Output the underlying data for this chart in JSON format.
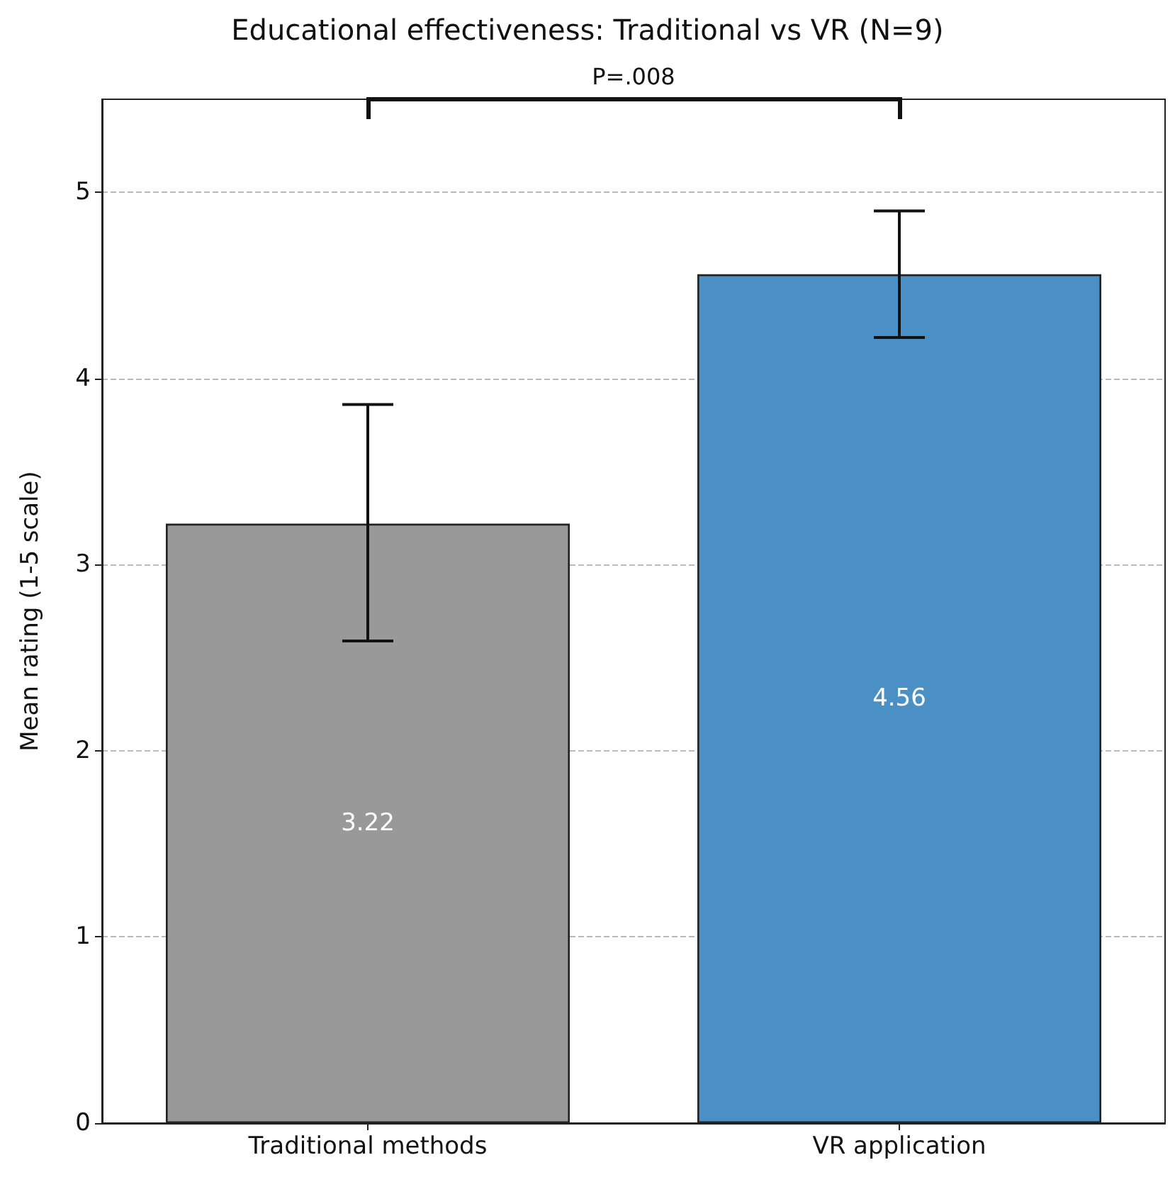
{
  "chart_data": {
    "type": "bar",
    "title": "Educational effectiveness: Traditional vs VR (N=9)",
    "ylabel": "Mean rating (1-5 scale)",
    "categories": [
      "Traditional methods",
      "VR application"
    ],
    "values": [
      3.22,
      4.56
    ],
    "colors": [
      "#999999",
      "#4a90c4"
    ],
    "errors": [
      [
        2.59,
        3.86
      ],
      [
        4.22,
        4.9
      ]
    ],
    "data_labels": true,
    "ylim": [
      0,
      5.5
    ],
    "yticks": [
      0,
      1,
      2,
      3,
      4,
      5
    ],
    "grid": "y",
    "annotations": [
      "P=.008"
    ]
  }
}
